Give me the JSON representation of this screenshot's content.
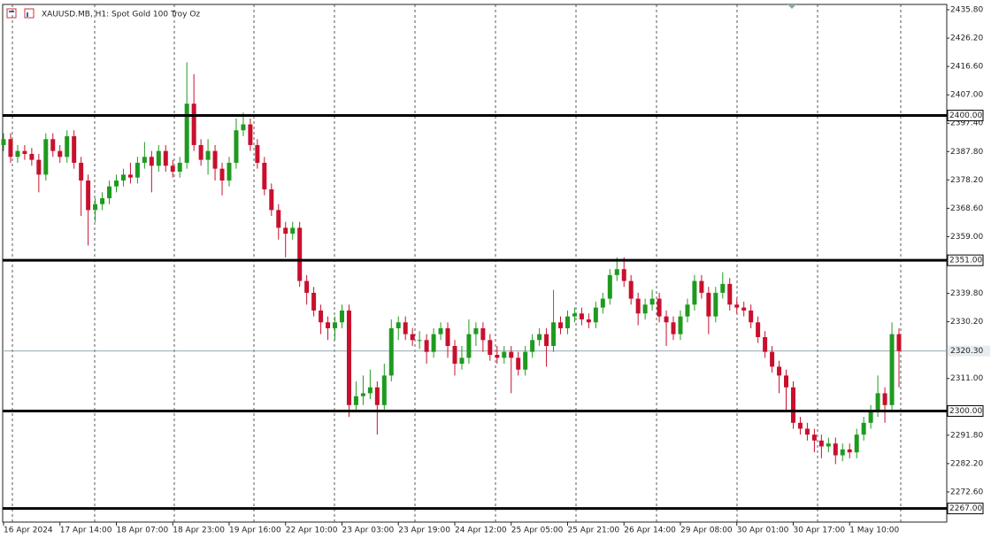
{
  "chart_data": {
    "type": "candlestick",
    "title": "XAUUSD.MB, H1:  Spot Gold 100 Troy Oz",
    "categories": [
      "16 Apr 2024",
      null,
      null,
      null,
      null,
      null,
      null,
      null,
      "17 Apr 14:00",
      null,
      null,
      null,
      null,
      null,
      null,
      null,
      "18 Apr 07:00",
      null,
      null,
      null,
      null,
      null,
      null,
      null,
      "18 Apr 23:00",
      null,
      null,
      null,
      null,
      null,
      null,
      null,
      "19 Apr 16:00",
      null,
      null,
      null,
      null,
      null,
      null,
      null,
      "22 Apr 10:00",
      null,
      null,
      null,
      null,
      null,
      null,
      null,
      "23 Apr 03:00",
      null,
      null,
      null,
      null,
      null,
      null,
      null,
      "23 Apr 19:00",
      null,
      null,
      null,
      null,
      null,
      null,
      null,
      "24 Apr 12:00",
      null,
      null,
      null,
      null,
      null,
      null,
      null,
      "25 Apr 05:00",
      null,
      null,
      null,
      null,
      null,
      null,
      null,
      "25 Apr 21:00",
      null,
      null,
      null,
      null,
      null,
      null,
      null,
      "26 Apr 14:00",
      null,
      null,
      null,
      null,
      null,
      null,
      null,
      "29 Apr 08:00",
      null,
      null,
      null,
      null,
      null,
      null,
      null,
      "30 Apr 01:00",
      null,
      null,
      null,
      null,
      null,
      null,
      null,
      "30 Apr 17:00",
      null,
      null,
      null,
      null,
      null,
      null,
      null,
      "1 May 10:00",
      null,
      null,
      null,
      null,
      null,
      null,
      null
    ],
    "open": [
      2390,
      2392,
      2386,
      2388,
      2387,
      2385,
      2380,
      2392,
      2388,
      2386,
      2393,
      2384,
      2378,
      2368,
      2370,
      2372,
      2376,
      2378,
      2380,
      2379,
      2384,
      2386,
      2383,
      2388,
      2383,
      2381,
      2384,
      2404,
      2390,
      2385,
      2388,
      2382,
      2378,
      2384,
      2395,
      2397,
      2390,
      2384,
      2375,
      2368,
      2362,
      2360,
      2362,
      2344,
      2340,
      2334,
      2330,
      2328,
      2330,
      2334,
      2302,
      2305,
      2306,
      2308,
      2302,
      2312,
      2328,
      2330,
      2326,
      2324,
      2324,
      2320,
      2326,
      2328,
      2322,
      2316,
      2318,
      2326,
      2328,
      2324,
      2319,
      2318,
      2320,
      2318,
      2314,
      2320,
      2324,
      2326,
      2322,
      2330,
      2328,
      2332,
      2333,
      2331,
      2330,
      2335,
      2338,
      2346,
      2348,
      2344,
      2338,
      2333,
      2336,
      2338,
      2332,
      2330,
      2326,
      2332,
      2336,
      2344,
      2340,
      2332,
      2340,
      2343,
      2336,
      2335,
      2334,
      2330,
      2325,
      2320,
      2315,
      2312,
      2308,
      2296,
      2294,
      2292,
      2290,
      2288,
      2289,
      2285,
      2287,
      2286,
      2292,
      2296,
      2300,
      2306,
      2302,
      2326
    ],
    "high": [
      2394,
      2394,
      2390,
      2390,
      2389,
      2387,
      2394,
      2394,
      2390,
      2395,
      2395,
      2386,
      2380,
      2372,
      2374,
      2378,
      2380,
      2382,
      2384,
      2386,
      2391,
      2388,
      2390,
      2390,
      2385,
      2386,
      2418,
      2414,
      2392,
      2392,
      2390,
      2384,
      2386,
      2399,
      2401,
      2399,
      2392,
      2386,
      2377,
      2370,
      2364,
      2364,
      2364,
      2346,
      2342,
      2336,
      2332,
      2332,
      2336,
      2336,
      2310,
      2312,
      2314,
      2310,
      2316,
      2331,
      2332,
      2332,
      2328,
      2327,
      2326,
      2328,
      2330,
      2330,
      2324,
      2322,
      2331,
      2330,
      2330,
      2326,
      2322,
      2322,
      2322,
      2320,
      2322,
      2326,
      2328,
      2328,
      2341,
      2332,
      2334,
      2335,
      2335,
      2333,
      2337,
      2340,
      2348,
      2352,
      2352,
      2346,
      2340,
      2338,
      2341,
      2340,
      2334,
      2332,
      2334,
      2338,
      2346,
      2346,
      2342,
      2342,
      2347,
      2345,
      2338,
      2337,
      2336,
      2332,
      2327,
      2322,
      2317,
      2314,
      2310,
      2298,
      2296,
      2294,
      2292,
      2291,
      2291,
      2289,
      2289,
      2294,
      2298,
      2302,
      2312,
      2308,
      2330,
      2328
    ],
    "low": [
      2388,
      2384,
      2384,
      2385,
      2383,
      2374,
      2378,
      2386,
      2384,
      2384,
      2382,
      2366,
      2356,
      2364,
      2368,
      2370,
      2374,
      2376,
      2377,
      2377,
      2382,
      2374,
      2381,
      2381,
      2379,
      2379,
      2382,
      2388,
      2383,
      2380,
      2378,
      2373,
      2376,
      2382,
      2393,
      2388,
      2382,
      2373,
      2366,
      2358,
      2352,
      2358,
      2342,
      2336,
      2332,
      2326,
      2324,
      2324,
      2328,
      2298,
      2300,
      2302,
      2304,
      2292,
      2300,
      2310,
      2324,
      2324,
      2322,
      2321,
      2316,
      2318,
      2324,
      2318,
      2312,
      2314,
      2316,
      2322,
      2320,
      2317,
      2316,
      2316,
      2306,
      2312,
      2312,
      2318,
      2322,
      2315,
      2320,
      2326,
      2326,
      2330,
      2329,
      2328,
      2328,
      2333,
      2336,
      2344,
      2342,
      2336,
      2329,
      2331,
      2334,
      2330,
      2322,
      2324,
      2324,
      2330,
      2334,
      2338,
      2326,
      2330,
      2338,
      2334,
      2333,
      2332,
      2328,
      2323,
      2318,
      2313,
      2306,
      2300,
      2294,
      2292,
      2290,
      2286,
      2284,
      2286,
      2282,
      2283,
      2284,
      2284,
      2290,
      2294,
      2298,
      2296,
      2300,
      2308
    ],
    "close": [
      2392,
      2386,
      2388,
      2387,
      2385,
      2380,
      2392,
      2388,
      2386,
      2393,
      2384,
      2378,
      2368,
      2370,
      2372,
      2376,
      2378,
      2380,
      2379,
      2384,
      2386,
      2383,
      2388,
      2383,
      2381,
      2384,
      2404,
      2390,
      2385,
      2388,
      2382,
      2378,
      2384,
      2395,
      2397,
      2390,
      2384,
      2375,
      2368,
      2362,
      2360,
      2362,
      2344,
      2340,
      2334,
      2330,
      2328,
      2330,
      2334,
      2302,
      2305,
      2306,
      2308,
      2302,
      2312,
      2328,
      2330,
      2326,
      2324,
      2324,
      2320,
      2326,
      2328,
      2322,
      2316,
      2318,
      2326,
      2328,
      2324,
      2319,
      2318,
      2320,
      2318,
      2314,
      2320,
      2324,
      2326,
      2322,
      2330,
      2328,
      2332,
      2333,
      2331,
      2330,
      2335,
      2338,
      2346,
      2348,
      2344,
      2338,
      2333,
      2336,
      2338,
      2332,
      2330,
      2326,
      2332,
      2336,
      2344,
      2340,
      2332,
      2340,
      2343,
      2336,
      2335,
      2334,
      2330,
      2325,
      2320,
      2315,
      2312,
      2308,
      2296,
      2294,
      2292,
      2290,
      2288,
      2289,
      2285,
      2287,
      2286,
      2292,
      2296,
      2300,
      2306,
      2302,
      2326,
      2320.3
    ],
    "up_color": "#1f9a1f",
    "down_color": "#c8102e",
    "ylim": [
      2262.4,
      2437.6
    ],
    "yticks": [
      {
        "value": 2435.8,
        "label": "2435.80"
      },
      {
        "value": 2426.2,
        "label": "2426.20"
      },
      {
        "value": 2416.6,
        "label": "2416.60"
      },
      {
        "value": 2407.0,
        "label": "2407.00"
      },
      {
        "value": 2397.4,
        "label": "2397.40"
      },
      {
        "value": 2387.8,
        "label": "2387.80"
      },
      {
        "value": 2378.2,
        "label": "2378.20"
      },
      {
        "value": 2368.6,
        "label": "2368.60"
      },
      {
        "value": 2359.0,
        "label": "2359.00"
      },
      {
        "value": 2339.8,
        "label": "2339.80"
      },
      {
        "value": 2330.2,
        "label": "2330.20"
      },
      {
        "value": 2311.0,
        "label": "2311.00"
      },
      {
        "value": 2291.8,
        "label": "2291.80"
      },
      {
        "value": 2282.2,
        "label": "2282.20"
      },
      {
        "value": 2272.6,
        "label": "2272.60"
      }
    ],
    "levels": [
      {
        "value": 2400,
        "label": "2400.00"
      },
      {
        "value": 2351,
        "label": "2351.00"
      },
      {
        "value": 2300,
        "label": "2300.00"
      },
      {
        "value": 2267,
        "label": "2267.00"
      }
    ],
    "price_line": {
      "value": 2320.3,
      "label": "2320.30"
    }
  }
}
